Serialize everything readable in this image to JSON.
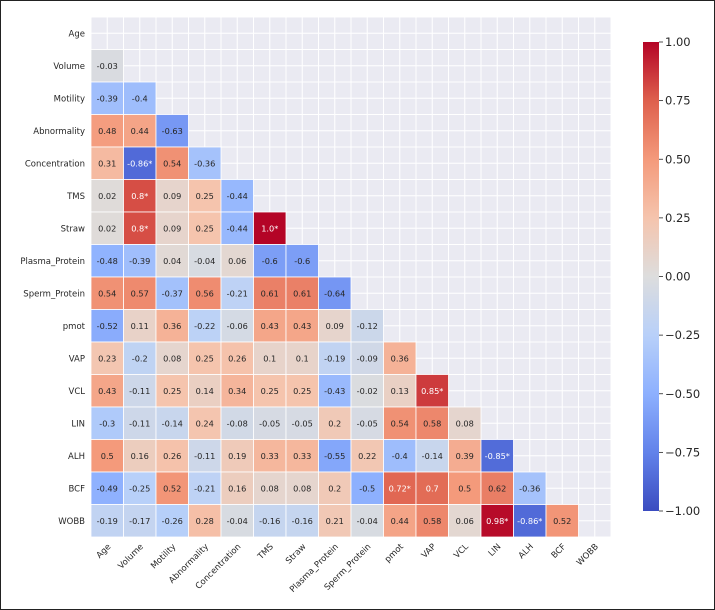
{
  "chart_data": {
    "type": "heatmap",
    "title": "",
    "subtitle": "",
    "xlabel": "",
    "ylabel": "",
    "variables": [
      "Age",
      "Volume",
      "Motility",
      "Abnormality",
      "Concentration",
      "TMS",
      "Straw",
      "Plasma_Protein",
      "Sperm_Protein",
      "pmot",
      "VAP",
      "VCL",
      "LIN",
      "ALH",
      "BCF",
      "WOBB"
    ],
    "mask": "upper-triangle-including-diagonal",
    "significant_marker": "*",
    "lower_triangle": [
      [],
      [
        "-0.03"
      ],
      [
        "-0.39",
        "-0.4"
      ],
      [
        "0.48",
        "0.44",
        "-0.63"
      ],
      [
        "0.31",
        "-0.86*",
        "0.54",
        "-0.36"
      ],
      [
        "0.02",
        "0.8*",
        "0.09",
        "0.25",
        "-0.44"
      ],
      [
        "0.02",
        "0.8*",
        "0.09",
        "0.25",
        "-0.44",
        "1.0*"
      ],
      [
        "-0.48",
        "-0.39",
        "0.04",
        "-0.04",
        "0.06",
        "-0.6",
        "-0.6"
      ],
      [
        "0.54",
        "0.57",
        "-0.37",
        "0.56",
        "-0.21",
        "0.61",
        "0.61",
        "-0.64"
      ],
      [
        "-0.52",
        "0.11",
        "0.36",
        "-0.22",
        "-0.06",
        "0.43",
        "0.43",
        "0.09",
        "-0.12"
      ],
      [
        "0.23",
        "-0.2",
        "0.08",
        "0.25",
        "0.26",
        "0.1",
        "0.1",
        "-0.19",
        "-0.09",
        "0.36"
      ],
      [
        "0.43",
        "-0.11",
        "0.25",
        "0.14",
        "0.34",
        "0.25",
        "0.25",
        "-0.43",
        "-0.02",
        "0.13",
        "0.85*"
      ],
      [
        "-0.3",
        "-0.11",
        "-0.14",
        "0.24",
        "-0.08",
        "-0.05",
        "-0.05",
        "0.2",
        "-0.05",
        "0.54",
        "0.58",
        "0.08"
      ],
      [
        "0.5",
        "0.16",
        "0.26",
        "-0.11",
        "0.19",
        "0.33",
        "0.33",
        "-0.55",
        "0.22",
        "-0.4",
        "-0.14",
        "0.39",
        "-0.85*"
      ],
      [
        "-0.49",
        "-0.25",
        "0.52",
        "-0.21",
        "0.16",
        "0.08",
        "0.08",
        "0.2",
        "-0.5",
        "0.72*",
        "0.7",
        "0.5",
        "0.62",
        "-0.36"
      ],
      [
        "-0.19",
        "-0.17",
        "-0.26",
        "0.28",
        "-0.04",
        "-0.16",
        "-0.16",
        "0.21",
        "-0.04",
        "0.44",
        "0.58",
        "0.06",
        "0.98*",
        "-0.86*",
        "0.52"
      ]
    ],
    "colormap": "coolwarm",
    "vmin": -1.0,
    "vmax": 1.0,
    "colorbar": {
      "ticks": [
        "1.00",
        "0.75",
        "0.50",
        "0.25",
        "0.00",
        "−0.25",
        "−0.50",
        "−0.75",
        "−1.00"
      ],
      "tick_values": [
        1.0,
        0.75,
        0.5,
        0.25,
        0.0,
        -0.25,
        -0.5,
        -0.75,
        -1.0
      ],
      "placement": "right"
    },
    "grid": true,
    "colors": {
      "background": "#eaeaf2",
      "gridline": "#ffffff",
      "text_dark": "#262626",
      "text_light": "#ffffff",
      "cmap_low": "#3b4cc0",
      "cmap_mid": "#dddddd",
      "cmap_high": "#b40426"
    }
  }
}
